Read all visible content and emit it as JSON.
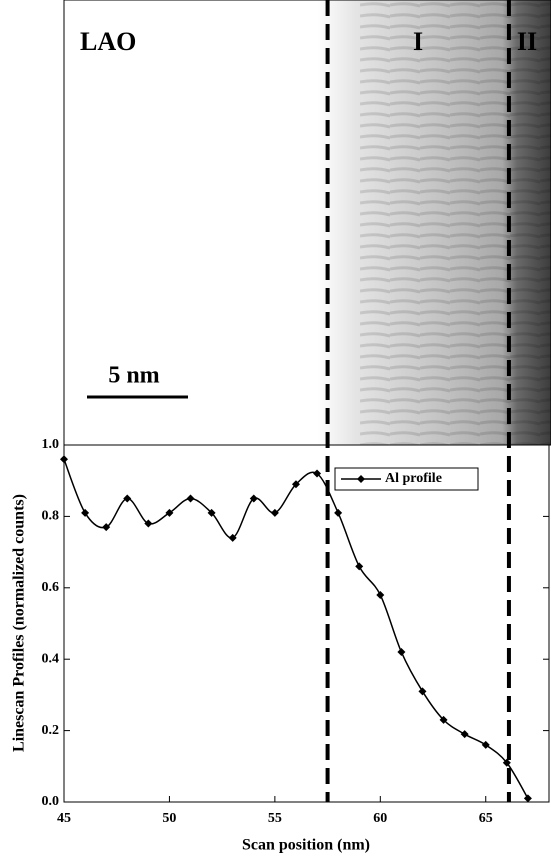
{
  "image": {
    "labels": {
      "substrate": "LAO",
      "region_1": "I",
      "region_2": "II",
      "scale_bar": "5 nm"
    }
  },
  "chart_data": {
    "type": "line",
    "x_label": "Scan position (nm)",
    "y_label": "Linescan Profiles (normalized counts)",
    "x": [
      45,
      46,
      47,
      48,
      49,
      50,
      51,
      52,
      53,
      54,
      55,
      56,
      57,
      58,
      59,
      60,
      61,
      62,
      63,
      64,
      65,
      66,
      67
    ],
    "series": [
      {
        "name": "Al profile",
        "color": "#000000",
        "values": [
          0.96,
          0.81,
          0.77,
          0.85,
          0.78,
          0.81,
          0.85,
          0.81,
          0.74,
          0.85,
          0.81,
          0.89,
          0.92,
          0.81,
          0.66,
          0.58,
          0.42,
          0.31,
          0.23,
          0.19,
          0.16,
          0.11,
          0.01
        ]
      }
    ],
    "xlim": [
      45,
      68
    ],
    "ylim": [
      0,
      1
    ],
    "xticks": [
      45,
      50,
      55,
      60,
      65
    ],
    "yticks": [
      {
        "value": 0,
        "label": "0.0"
      },
      0.2,
      0.4,
      0.6,
      0.8,
      {
        "value": 1,
        "label": "1.0"
      }
    ],
    "vlines": [
      57.5,
      66.1
    ],
    "legend": "upper right"
  }
}
